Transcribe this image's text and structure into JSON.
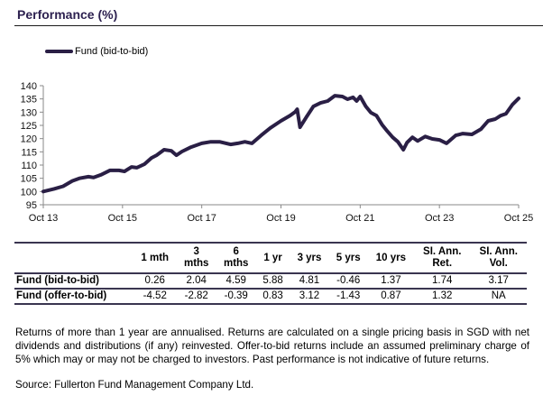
{
  "section_title": "Performance (%)",
  "chart_data": {
    "type": "line",
    "title": "Performance (%)",
    "xlabel": "",
    "ylabel": "",
    "ylim": [
      95,
      140
    ],
    "yticks": [
      95,
      100,
      105,
      110,
      115,
      120,
      125,
      130,
      135,
      140
    ],
    "xlim": [
      2013.75,
      2025.75
    ],
    "xticks": [
      {
        "label": "Oct 13",
        "x": 2013.75
      },
      {
        "label": "Oct 15",
        "x": 2015.75
      },
      {
        "label": "Oct 17",
        "x": 2017.75
      },
      {
        "label": "Oct 19",
        "x": 2019.75
      },
      {
        "label": "Oct 21",
        "x": 2021.75
      },
      {
        "label": "Oct 23",
        "x": 2023.75
      },
      {
        "label": "Oct 25",
        "x": 2025.75
      }
    ],
    "grid": false,
    "legend_position": "top-left",
    "series": [
      {
        "name": "Fund (bid-to-bid)",
        "color": "#2a1f45",
        "x": [
          2013.75,
          2014.02,
          2014.25,
          2014.48,
          2014.66,
          2014.89,
          2015.02,
          2015.2,
          2015.43,
          2015.66,
          2015.8,
          2015.98,
          2016.11,
          2016.3,
          2016.48,
          2016.61,
          2016.8,
          2016.98,
          2017.11,
          2017.25,
          2017.48,
          2017.75,
          2017.98,
          2018.2,
          2018.48,
          2018.66,
          2018.84,
          2019.02,
          2019.25,
          2019.48,
          2019.75,
          2019.98,
          2020.11,
          2020.16,
          2020.23,
          2020.39,
          2020.57,
          2020.75,
          2020.93,
          2021.11,
          2021.3,
          2021.43,
          2021.57,
          2021.66,
          2021.75,
          2021.89,
          2022.02,
          2022.16,
          2022.3,
          2022.43,
          2022.57,
          2022.7,
          2022.84,
          2022.93,
          2023.07,
          2023.2,
          2023.39,
          2023.57,
          2023.75,
          2023.93,
          2024.16,
          2024.34,
          2024.57,
          2024.8,
          2024.98,
          2025.16,
          2025.3,
          2025.43,
          2025.59,
          2025.75
        ],
        "values": [
          100.0,
          101.0,
          102.0,
          104.0,
          105.0,
          105.6,
          105.3,
          106.3,
          108.0,
          108.0,
          107.6,
          109.3,
          109.0,
          110.3,
          112.7,
          113.7,
          115.8,
          115.4,
          113.7,
          115.1,
          116.8,
          118.2,
          118.8,
          118.8,
          117.8,
          118.2,
          118.8,
          118.2,
          121.2,
          124.0,
          126.7,
          128.7,
          130.1,
          131.1,
          124.3,
          128.1,
          132.2,
          133.5,
          134.2,
          136.2,
          135.9,
          134.9,
          135.6,
          134.2,
          135.9,
          132.2,
          129.8,
          128.7,
          125.3,
          122.9,
          120.5,
          118.8,
          115.8,
          118.5,
          120.5,
          119.1,
          120.8,
          119.9,
          119.5,
          118.2,
          121.2,
          121.9,
          121.6,
          123.6,
          126.7,
          127.4,
          128.7,
          129.4,
          132.8,
          135.2
        ]
      }
    ]
  },
  "table": {
    "columns": [
      "",
      "1 mth",
      "3 mths",
      "6 mths",
      "1 yr",
      "3 yrs",
      "5 yrs",
      "10 yrs",
      "SI. Ann. Ret.",
      "SI. Ann. Vol."
    ],
    "column_lines": [
      [
        ""
      ],
      [
        "1 mth"
      ],
      [
        "3",
        "mths"
      ],
      [
        "6",
        "mths"
      ],
      [
        "1 yr"
      ],
      [
        "3 yrs"
      ],
      [
        "5 yrs"
      ],
      [
        "10 yrs"
      ],
      [
        "SI. Ann.",
        "Ret."
      ],
      [
        "SI. Ann.",
        "Vol."
      ]
    ],
    "rows": [
      {
        "label": "Fund (bid-to-bid)",
        "values": [
          "0.26",
          "2.04",
          "4.59",
          "5.88",
          "4.81",
          "-0.46",
          "1.37",
          "1.74",
          "3.17"
        ]
      },
      {
        "label": "Fund (offer-to-bid)",
        "values": [
          "-4.52",
          "-2.82",
          "-0.39",
          "0.83",
          "3.12",
          "-1.43",
          "0.87",
          "1.32",
          "NA"
        ]
      }
    ]
  },
  "notes": "Returns of more than 1 year are annualised. Returns are calculated on a single pricing basis in SGD with net dividends and distributions (if any) reinvested. Offer-to-bid returns include an assumed preliminary charge of 5% which may or may not be charged to investors. Past performance is not indicative of future returns.",
  "source": "Source: Fullerton Fund Management Company Ltd."
}
